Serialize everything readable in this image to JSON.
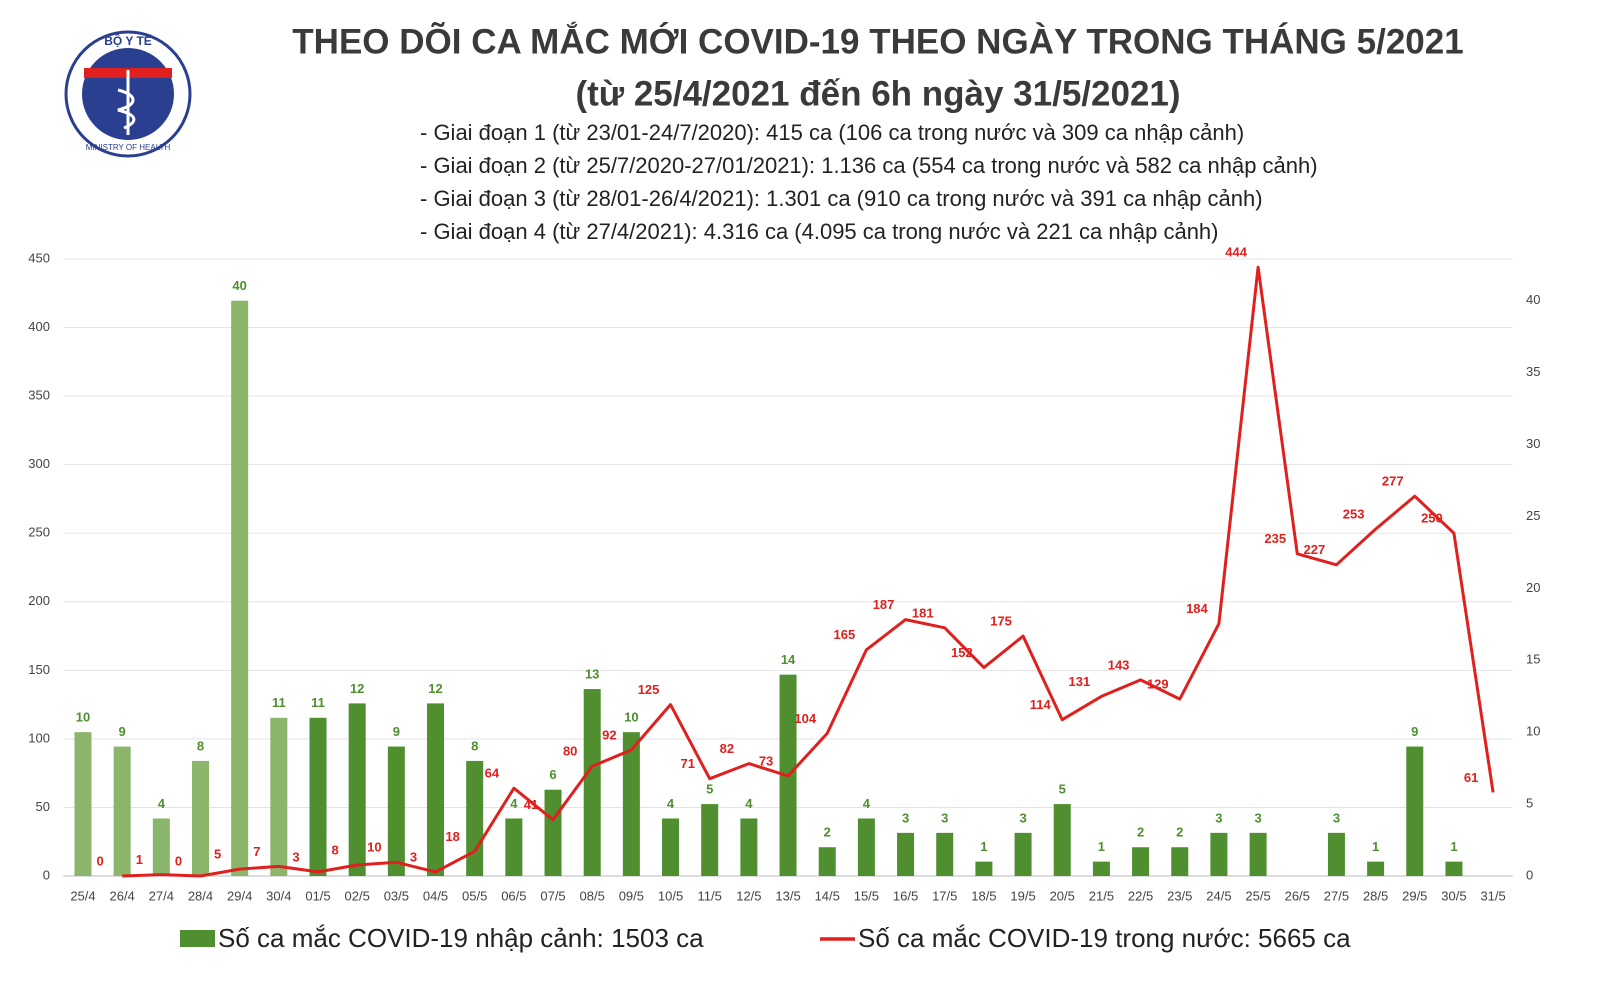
{
  "logo": {
    "top": "BỘ Y TẾ",
    "bottom": "MINISTRY OF HEALTH"
  },
  "chart_data": {
    "type": "bar-line",
    "title": "THEO DÕI CA MẮC MỚI COVID-19 THEO NGÀY TRONG THÁNG 5/2021",
    "subtitle": "(từ 25/4/2021 đến 6h ngày 31/5/2021)",
    "annotations": [
      "- Giai đoạn 1 (từ 23/01-24/7/2020): 415 ca (106 ca trong nước và 309 ca nhập cảnh)",
      "- Giai đoạn 2 (từ 25/7/2020-27/01/2021): 1.136 ca (554 ca trong nước và 582 ca nhập cảnh)",
      "- Giai đoạn 3 (từ 28/01-26/4/2021): 1.301 ca (910 ca trong nước và 391 ca nhập cảnh)",
      "- Giai đoạn 4 (từ 27/4/2021): 4.316 ca (4.095 ca trong nước và 221 ca nhập cảnh)"
    ],
    "categories": [
      "25/4",
      "26/4",
      "27/4",
      "28/4",
      "29/4",
      "30/4",
      "01/5",
      "02/5",
      "03/5",
      "04/5",
      "05/5",
      "06/5",
      "07/5",
      "08/5",
      "09/5",
      "10/5",
      "11/5",
      "12/5",
      "13/5",
      "14/5",
      "15/5",
      "16/5",
      "17/5",
      "18/5",
      "19/5",
      "20/5",
      "21/5",
      "22/5",
      "23/5",
      "24/5",
      "25/5",
      "26/5",
      "27/5",
      "28/5",
      "29/5",
      "30/5",
      "31/5"
    ],
    "series": [
      {
        "name": "Số ca mắc COVID-19 nhập cảnh: 1503 ca",
        "type": "bar",
        "axis": "y2",
        "color": "#4f8f2f",
        "label_color": "#4f8f2f",
        "colors": [
          "#8ab56b",
          "#8ab56b",
          "#8ab56b",
          "#8ab56b",
          "#8ab56b",
          "#8ab56b",
          "#4f8f2f",
          "#4f8f2f",
          "#4f8f2f",
          "#4f8f2f",
          "#4f8f2f",
          "#4f8f2f",
          "#4f8f2f",
          "#4f8f2f",
          "#4f8f2f",
          "#4f8f2f",
          "#4f8f2f",
          "#4f8f2f",
          "#4f8f2f",
          "#4f8f2f",
          "#4f8f2f",
          "#4f8f2f",
          "#4f8f2f",
          "#4f8f2f",
          "#4f8f2f",
          "#4f8f2f",
          "#4f8f2f",
          "#4f8f2f",
          "#4f8f2f",
          "#4f8f2f",
          "#4f8f2f",
          "#4f8f2f",
          "#4f8f2f",
          "#4f8f2f",
          "#4f8f2f",
          "#4f8f2f",
          "#4f8f2f"
        ],
        "values": [
          10,
          9,
          4,
          8,
          40,
          11,
          11,
          12,
          9,
          12,
          8,
          4,
          6,
          13,
          10,
          4,
          5,
          4,
          14,
          2,
          4,
          3,
          3,
          1,
          3,
          5,
          1,
          2,
          2,
          3,
          3,
          null,
          3,
          1,
          9,
          1,
          null
        ]
      },
      {
        "name": "Số ca mắc COVID-19 trong nước: 5665 ca",
        "type": "line",
        "color": "#e0201e",
        "label_color": "#e0201e",
        "values": [
          null,
          0,
          1,
          0,
          5,
          7,
          3,
          8,
          10,
          3,
          18,
          64,
          41,
          80,
          92,
          125,
          71,
          82,
          73,
          104,
          165,
          187,
          181,
          152,
          175,
          114,
          131,
          143,
          129,
          184,
          444,
          235,
          227,
          253,
          277,
          250,
          61
        ]
      }
    ],
    "ylim": [
      0,
      450
    ],
    "yticks": [
      0,
      50,
      100,
      150,
      200,
      250,
      300,
      350,
      400,
      450
    ],
    "y2lim": [
      0,
      42.9
    ],
    "y2ticks": [
      0,
      5,
      10,
      15,
      20,
      25,
      30,
      35,
      40
    ],
    "grid": true
  }
}
